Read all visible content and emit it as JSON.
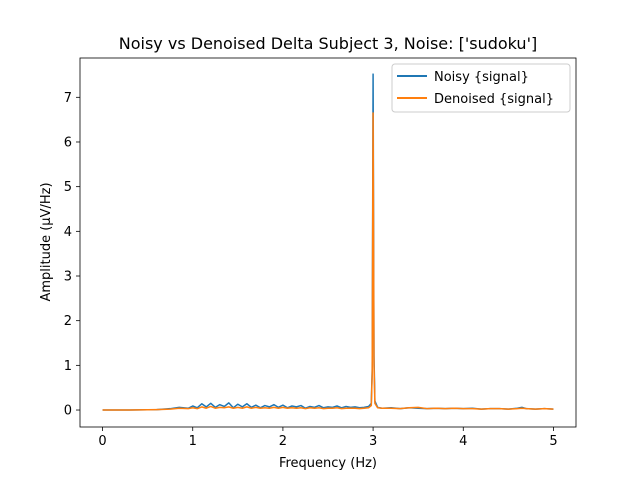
{
  "chart_data": {
    "type": "line",
    "title": "Noisy vs Denoised Delta Subject 3, Noise: ['sudoku']",
    "xlabel": "Frequency (Hz)",
    "ylabel": "Amplitude (μV/Hz)",
    "xlim": [
      -0.25,
      5.25
    ],
    "ylim": [
      -0.38,
      7.88
    ],
    "xticks": [
      0,
      1,
      2,
      3,
      4,
      5
    ],
    "yticks": [
      0,
      1,
      2,
      3,
      4,
      5,
      6,
      7
    ],
    "grid": false,
    "legend_position": "top-right",
    "series": [
      {
        "name": "Noisy {signal}",
        "color": "#1f77b4",
        "x": [
          0,
          0.3,
          0.6,
          0.75,
          0.85,
          0.95,
          1.0,
          1.05,
          1.1,
          1.15,
          1.2,
          1.25,
          1.3,
          1.35,
          1.4,
          1.45,
          1.5,
          1.55,
          1.6,
          1.65,
          1.7,
          1.75,
          1.8,
          1.85,
          1.9,
          1.95,
          2.0,
          2.05,
          2.1,
          2.15,
          2.2,
          2.25,
          2.3,
          2.35,
          2.4,
          2.45,
          2.5,
          2.55,
          2.6,
          2.65,
          2.7,
          2.75,
          2.8,
          2.85,
          2.9,
          2.95,
          2.98,
          2.99,
          3.0,
          3.01,
          3.02,
          3.05,
          3.1,
          3.2,
          3.3,
          3.4,
          3.5,
          3.6,
          3.7,
          3.8,
          3.9,
          4.0,
          4.1,
          4.2,
          4.3,
          4.4,
          4.5,
          4.6,
          4.65,
          4.7,
          4.8,
          4.9,
          5.0
        ],
        "y": [
          0.0,
          0.0,
          0.01,
          0.03,
          0.06,
          0.04,
          0.09,
          0.05,
          0.14,
          0.07,
          0.15,
          0.06,
          0.12,
          0.08,
          0.16,
          0.05,
          0.13,
          0.07,
          0.14,
          0.06,
          0.11,
          0.05,
          0.1,
          0.07,
          0.12,
          0.06,
          0.11,
          0.05,
          0.09,
          0.07,
          0.1,
          0.04,
          0.08,
          0.06,
          0.1,
          0.05,
          0.07,
          0.06,
          0.09,
          0.05,
          0.08,
          0.06,
          0.07,
          0.05,
          0.06,
          0.08,
          0.15,
          0.9,
          7.52,
          1.2,
          0.2,
          0.06,
          0.04,
          0.05,
          0.03,
          0.05,
          0.04,
          0.03,
          0.04,
          0.03,
          0.04,
          0.03,
          0.04,
          0.02,
          0.03,
          0.03,
          0.02,
          0.04,
          0.06,
          0.03,
          0.02,
          0.03,
          0.02
        ]
      },
      {
        "name": "Denoised {signal}",
        "color": "#ff7f0e",
        "x": [
          0,
          0.3,
          0.6,
          0.75,
          0.85,
          0.95,
          1.0,
          1.05,
          1.1,
          1.15,
          1.2,
          1.25,
          1.3,
          1.35,
          1.4,
          1.45,
          1.5,
          1.55,
          1.6,
          1.65,
          1.7,
          1.75,
          1.8,
          1.85,
          1.9,
          1.95,
          2.0,
          2.05,
          2.1,
          2.15,
          2.2,
          2.25,
          2.3,
          2.35,
          2.4,
          2.45,
          2.5,
          2.55,
          2.6,
          2.65,
          2.7,
          2.75,
          2.8,
          2.85,
          2.9,
          2.95,
          2.98,
          2.99,
          3.0,
          3.01,
          3.02,
          3.05,
          3.1,
          3.2,
          3.3,
          3.4,
          3.5,
          3.6,
          3.7,
          3.8,
          3.9,
          4.0,
          4.1,
          4.2,
          4.3,
          4.4,
          4.5,
          4.6,
          4.65,
          4.7,
          4.8,
          4.9,
          5.0
        ],
        "y": [
          0.0,
          0.0,
          0.01,
          0.02,
          0.04,
          0.03,
          0.05,
          0.03,
          0.07,
          0.04,
          0.08,
          0.04,
          0.06,
          0.05,
          0.07,
          0.04,
          0.06,
          0.04,
          0.07,
          0.04,
          0.06,
          0.04,
          0.05,
          0.04,
          0.06,
          0.04,
          0.06,
          0.04,
          0.05,
          0.04,
          0.05,
          0.03,
          0.05,
          0.04,
          0.05,
          0.03,
          0.04,
          0.04,
          0.05,
          0.03,
          0.04,
          0.04,
          0.04,
          0.03,
          0.04,
          0.05,
          0.1,
          0.8,
          6.65,
          1.0,
          0.15,
          0.05,
          0.04,
          0.04,
          0.03,
          0.05,
          0.06,
          0.03,
          0.04,
          0.03,
          0.04,
          0.03,
          0.03,
          0.02,
          0.03,
          0.03,
          0.02,
          0.03,
          0.04,
          0.03,
          0.02,
          0.03,
          0.02
        ]
      }
    ]
  }
}
